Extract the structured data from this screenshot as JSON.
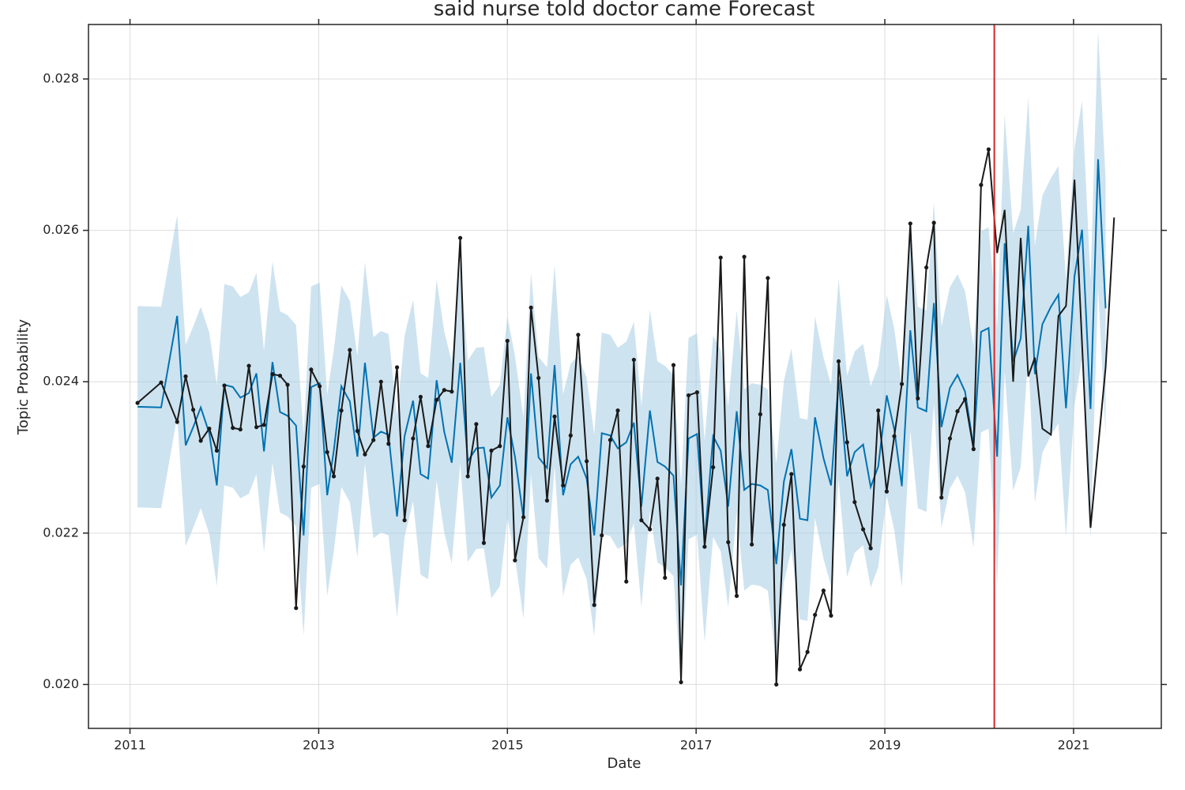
{
  "chart_data": {
    "type": "line",
    "title": "said nurse told doctor came Forecast",
    "xlabel": "Date",
    "ylabel": "Topic Probability",
    "xlim": [
      2010.56,
      2021.93
    ],
    "ylim": [
      0.01942,
      0.02872
    ],
    "xticks": [
      2011,
      2013,
      2015,
      2017,
      2019,
      2021
    ],
    "yticks": [
      {
        "value": 0.02,
        "label": "0.020"
      },
      0.022,
      0.024,
      0.026,
      0.028
    ],
    "grid": true,
    "vline": {
      "x": 2020.16,
      "color": "#d62728"
    },
    "series": [
      {
        "color": "#0072b2",
        "band_color": "#a6cce3",
        "x": [
          2011.08,
          2011.33,
          2011.5,
          2011.59,
          2011.67,
          2011.75,
          2011.84,
          2011.92,
          2012.0,
          2012.09,
          2012.17,
          2012.26,
          2012.34,
          2012.42,
          2012.51,
          2012.59,
          2012.67,
          2012.76,
          2012.84,
          2012.92,
          2013.01,
          2013.09,
          2013.16,
          2013.24,
          2013.33,
          2013.41,
          2013.49,
          2013.58,
          2013.66,
          2013.74,
          2013.83,
          2013.91,
          2014.0,
          2014.08,
          2014.16,
          2014.25,
          2014.33,
          2014.41,
          2014.5,
          2014.58,
          2014.67,
          2014.75,
          2014.83,
          2014.92,
          2015.0,
          2015.08,
          2015.17,
          2015.25,
          2015.33,
          2015.42,
          2015.5,
          2015.59,
          2015.67,
          2015.75,
          2015.84,
          2015.92,
          2016.0,
          2016.09,
          2016.17,
          2016.26,
          2016.34,
          2016.42,
          2016.51,
          2016.59,
          2016.67,
          2016.76,
          2016.84,
          2016.92,
          2017.01,
          2017.09,
          2017.18,
          2017.26,
          2017.34,
          2017.43,
          2017.51,
          2017.59,
          2017.68,
          2017.76,
          2017.85,
          2017.93,
          2018.01,
          2018.1,
          2018.18,
          2018.26,
          2018.35,
          2018.43,
          2018.51,
          2018.6,
          2018.68,
          2018.77,
          2018.85,
          2018.93,
          2019.02,
          2019.1,
          2019.18,
          2019.27,
          2019.35,
          2019.44,
          2019.52,
          2019.6,
          2019.69,
          2019.77,
          2019.85,
          2019.94,
          2020.02,
          2020.1,
          2020.19,
          2020.27,
          2020.36,
          2020.44,
          2020.52,
          2020.59,
          2020.67,
          2020.76,
          2020.84,
          2020.92,
          2021.01,
          2021.09,
          2021.18,
          2021.26,
          2021.34
        ],
        "values": [
          0.02367,
          0.02366,
          0.02487,
          0.02316,
          0.0234,
          0.02366,
          0.02332,
          0.02263,
          0.02396,
          0.02393,
          0.02379,
          0.02385,
          0.02411,
          0.02308,
          0.02426,
          0.0236,
          0.02355,
          0.02342,
          0.02197,
          0.02393,
          0.02398,
          0.0225,
          0.02309,
          0.02394,
          0.02374,
          0.02301,
          0.02425,
          0.02326,
          0.02334,
          0.0233,
          0.02222,
          0.02328,
          0.02375,
          0.02278,
          0.02272,
          0.02402,
          0.02334,
          0.02293,
          0.02425,
          0.02295,
          0.02312,
          0.02313,
          0.02247,
          0.02263,
          0.02353,
          0.02301,
          0.0222,
          0.02411,
          0.023,
          0.02286,
          0.02422,
          0.0225,
          0.02291,
          0.02301,
          0.02272,
          0.02197,
          0.02332,
          0.02329,
          0.02312,
          0.0232,
          0.02346,
          0.02235,
          0.02362,
          0.02294,
          0.02288,
          0.02276,
          0.02131,
          0.02325,
          0.02331,
          0.02189,
          0.02328,
          0.02309,
          0.02235,
          0.02361,
          0.02257,
          0.02265,
          0.02263,
          0.02257,
          0.02159,
          0.02268,
          0.02311,
          0.02219,
          0.02217,
          0.02353,
          0.02299,
          0.02263,
          0.02403,
          0.02275,
          0.02307,
          0.02317,
          0.02261,
          0.02288,
          0.02382,
          0.02337,
          0.02262,
          0.02468,
          0.02366,
          0.02361,
          0.02504,
          0.0234,
          0.02392,
          0.02409,
          0.02387,
          0.02314,
          0.02466,
          0.02471,
          0.02301,
          0.02583,
          0.02426,
          0.02457,
          0.02606,
          0.0241,
          0.02476,
          0.02499,
          0.02515,
          0.02365,
          0.02539,
          0.02601,
          0.02364,
          0.02694,
          0.02497
        ],
        "upper": [
          0.025,
          0.02499,
          0.0262,
          0.02449,
          0.02473,
          0.02499,
          0.02465,
          0.02396,
          0.02529,
          0.02526,
          0.02512,
          0.02518,
          0.02544,
          0.02441,
          0.02559,
          0.02493,
          0.02488,
          0.02475,
          0.0233,
          0.02526,
          0.02531,
          0.02383,
          0.02442,
          0.02527,
          0.02507,
          0.02434,
          0.02558,
          0.02459,
          0.02467,
          0.02463,
          0.02355,
          0.02461,
          0.02508,
          0.02411,
          0.02405,
          0.02535,
          0.02467,
          0.02426,
          0.02558,
          0.02428,
          0.02445,
          0.02446,
          0.0238,
          0.02396,
          0.02486,
          0.02434,
          0.02353,
          0.02544,
          0.02433,
          0.02419,
          0.02555,
          0.02383,
          0.02424,
          0.02434,
          0.02405,
          0.0233,
          0.02465,
          0.02462,
          0.02445,
          0.02453,
          0.02479,
          0.02368,
          0.02495,
          0.02427,
          0.02421,
          0.02409,
          0.02264,
          0.02458,
          0.02464,
          0.02322,
          0.02461,
          0.02442,
          0.02368,
          0.02494,
          0.0239,
          0.02398,
          0.02396,
          0.0239,
          0.02292,
          0.02401,
          0.02444,
          0.02352,
          0.0235,
          0.02486,
          0.02432,
          0.02396,
          0.02536,
          0.02408,
          0.0244,
          0.0245,
          0.02394,
          0.02421,
          0.02515,
          0.0247,
          0.02395,
          0.02601,
          0.02499,
          0.02494,
          0.02637,
          0.02473,
          0.02525,
          0.02542,
          0.0252,
          0.02447,
          0.02599,
          0.02604,
          0.02471,
          0.02753,
          0.02596,
          0.02627,
          0.02776,
          0.0258,
          0.02646,
          0.02669,
          0.02685,
          0.02535,
          0.02709,
          0.02771,
          0.02534,
          0.02864,
          0.02667
        ],
        "lower": [
          0.02234,
          0.02233,
          0.02354,
          0.02183,
          0.02207,
          0.02233,
          0.02199,
          0.0213,
          0.02263,
          0.0226,
          0.02246,
          0.02252,
          0.02278,
          0.02175,
          0.02293,
          0.02227,
          0.02222,
          0.02209,
          0.02064,
          0.0226,
          0.02265,
          0.02117,
          0.02176,
          0.02261,
          0.02241,
          0.02168,
          0.02292,
          0.02193,
          0.02201,
          0.02197,
          0.02089,
          0.02195,
          0.02242,
          0.02145,
          0.02139,
          0.02269,
          0.02201,
          0.0216,
          0.02292,
          0.02162,
          0.02179,
          0.0218,
          0.02114,
          0.0213,
          0.0222,
          0.02168,
          0.02087,
          0.02278,
          0.02167,
          0.02153,
          0.02289,
          0.02117,
          0.02158,
          0.02168,
          0.02139,
          0.02064,
          0.02199,
          0.02196,
          0.02179,
          0.02187,
          0.02213,
          0.02102,
          0.02229,
          0.02161,
          0.02155,
          0.02143,
          0.01998,
          0.02192,
          0.02198,
          0.02056,
          0.02195,
          0.02176,
          0.02102,
          0.02228,
          0.02124,
          0.02132,
          0.0213,
          0.02124,
          0.02026,
          0.02135,
          0.02178,
          0.02086,
          0.02084,
          0.0222,
          0.02166,
          0.0213,
          0.0227,
          0.02142,
          0.02174,
          0.02184,
          0.02128,
          0.02155,
          0.02249,
          0.02204,
          0.02129,
          0.02335,
          0.02233,
          0.02228,
          0.02371,
          0.02207,
          0.02259,
          0.02276,
          0.02254,
          0.02181,
          0.02333,
          0.02338,
          0.02131,
          0.02413,
          0.02256,
          0.02287,
          0.02436,
          0.0224,
          0.02306,
          0.02329,
          0.02345,
          0.02195,
          0.02369,
          0.02431,
          0.02194,
          0.02524,
          0.02327
        ]
      },
      {
        "color": "#1a1a1a",
        "x": [
          2011.08,
          2011.33,
          2011.5,
          2011.59,
          2011.67,
          2011.75,
          2011.84,
          2011.92,
          2012.0,
          2012.09,
          2012.17,
          2012.26,
          2012.34,
          2012.42,
          2012.51,
          2012.59,
          2012.67,
          2012.76,
          2012.84,
          2012.92,
          2013.01,
          2013.09,
          2013.16,
          2013.24,
          2013.33,
          2013.41,
          2013.49,
          2013.58,
          2013.66,
          2013.74,
          2013.83,
          2013.91,
          2014.0,
          2014.08,
          2014.16,
          2014.25,
          2014.33,
          2014.41,
          2014.5,
          2014.58,
          2014.67,
          2014.75,
          2014.83,
          2014.92,
          2015.0,
          2015.08,
          2015.17,
          2015.25,
          2015.33,
          2015.42,
          2015.5,
          2015.59,
          2015.67,
          2015.75,
          2015.84,
          2015.92,
          2016.0,
          2016.09,
          2016.17,
          2016.26,
          2016.34,
          2016.42,
          2016.51,
          2016.59,
          2016.67,
          2016.76,
          2016.84,
          2016.92,
          2017.01,
          2017.09,
          2017.18,
          2017.26,
          2017.34,
          2017.43,
          2017.51,
          2017.59,
          2017.68,
          2017.76,
          2017.85,
          2017.93,
          2018.01,
          2018.1,
          2018.18,
          2018.26,
          2018.35,
          2018.43,
          2018.51,
          2018.6,
          2018.68,
          2018.77,
          2018.85,
          2018.93,
          2019.02,
          2019.1,
          2019.18,
          2019.27,
          2019.35,
          2019.44,
          2019.52,
          2019.6,
          2019.69,
          2019.77,
          2019.85,
          2019.94,
          2020.02,
          2020.1,
          2020.19,
          2020.27,
          2020.36,
          2020.44,
          2020.52,
          2020.59,
          2020.67,
          2020.76,
          2020.84,
          2020.92,
          2021.01,
          2021.18,
          2021.34,
          2021.43
        ],
        "values": [
          0.02372,
          0.02399,
          0.02347,
          0.02407,
          0.02363,
          0.02322,
          0.02338,
          0.02309,
          0.02395,
          0.02339,
          0.02337,
          0.02421,
          0.0234,
          0.02343,
          0.0241,
          0.02408,
          0.02396,
          0.02101,
          0.02288,
          0.02416,
          0.02394,
          0.02307,
          0.02275,
          0.02362,
          0.02442,
          0.02335,
          0.02304,
          0.02323,
          0.024,
          0.02318,
          0.02419,
          0.02217,
          0.02325,
          0.0238,
          0.02315,
          0.02376,
          0.02389,
          0.02387,
          0.0259,
          0.02275,
          0.02344,
          0.02187,
          0.02309,
          0.02315,
          0.02454,
          0.02164,
          0.02221,
          0.02498,
          0.02405,
          0.02243,
          0.02354,
          0.02263,
          0.02329,
          0.02462,
          0.02295,
          0.02105,
          0.02197,
          0.02323,
          0.02362,
          0.02136,
          0.02429,
          0.02217,
          0.02205,
          0.02272,
          0.02141,
          0.02422,
          0.02003,
          0.02382,
          0.02386,
          0.02182,
          0.02287,
          0.02564,
          0.02188,
          0.02117,
          0.02565,
          0.02185,
          0.02357,
          0.02537,
          0.02,
          0.02211,
          0.02278,
          0.0202,
          0.02043,
          0.02092,
          0.02124,
          0.02091,
          0.02427,
          0.0232,
          0.02241,
          0.02205,
          0.0218,
          0.02362,
          0.02255,
          0.02328,
          0.02397,
          0.02609,
          0.02378,
          0.02551,
          0.0261,
          0.02247,
          0.02325,
          0.02361,
          0.02377,
          0.02311,
          0.0266,
          0.02707,
          0.0257,
          0.02627,
          0.024,
          0.0259,
          0.02407,
          0.02432,
          0.02338,
          0.0233,
          0.02487,
          0.025,
          0.02667,
          0.02207,
          0.02419,
          0.02617
        ]
      }
    ]
  }
}
